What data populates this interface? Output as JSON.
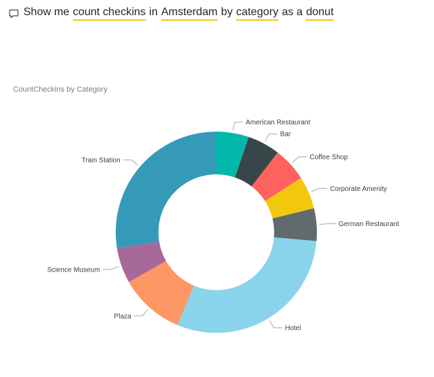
{
  "qa": {
    "icon": "chat-bubble-icon",
    "parts": [
      {
        "text": "Show me",
        "keyword": false
      },
      {
        "text": "count checkins",
        "keyword": true
      },
      {
        "text": "in",
        "keyword": false
      },
      {
        "text": "Amsterdam",
        "keyword": true
      },
      {
        "text": "by",
        "keyword": false
      },
      {
        "text": "category",
        "keyword": true
      },
      {
        "text": "as a",
        "keyword": false
      },
      {
        "text": "donut",
        "keyword": true
      }
    ],
    "keyword_underline_color": "#f2c811"
  },
  "chart_data": {
    "type": "pie",
    "variant": "donut",
    "title": "CountCheckins by Category",
    "categories": [
      "American Restaurant",
      "Bar",
      "Coffee Shop",
      "Corporate Amenity",
      "German Restaurant",
      "Hotel",
      "Plaza",
      "Science Museum",
      "Train Station"
    ],
    "values": [
      5.5,
      5.5,
      5.8,
      5.5,
      5.5,
      31.5,
      11,
      6,
      29
    ],
    "colors": [
      "#01b8aa",
      "#374649",
      "#fd625e",
      "#f2c80f",
      "#5f6b6d",
      "#8ad4eb",
      "#fe9666",
      "#a66999",
      "#3599b8"
    ],
    "legend": "none",
    "data_labels": "category"
  }
}
